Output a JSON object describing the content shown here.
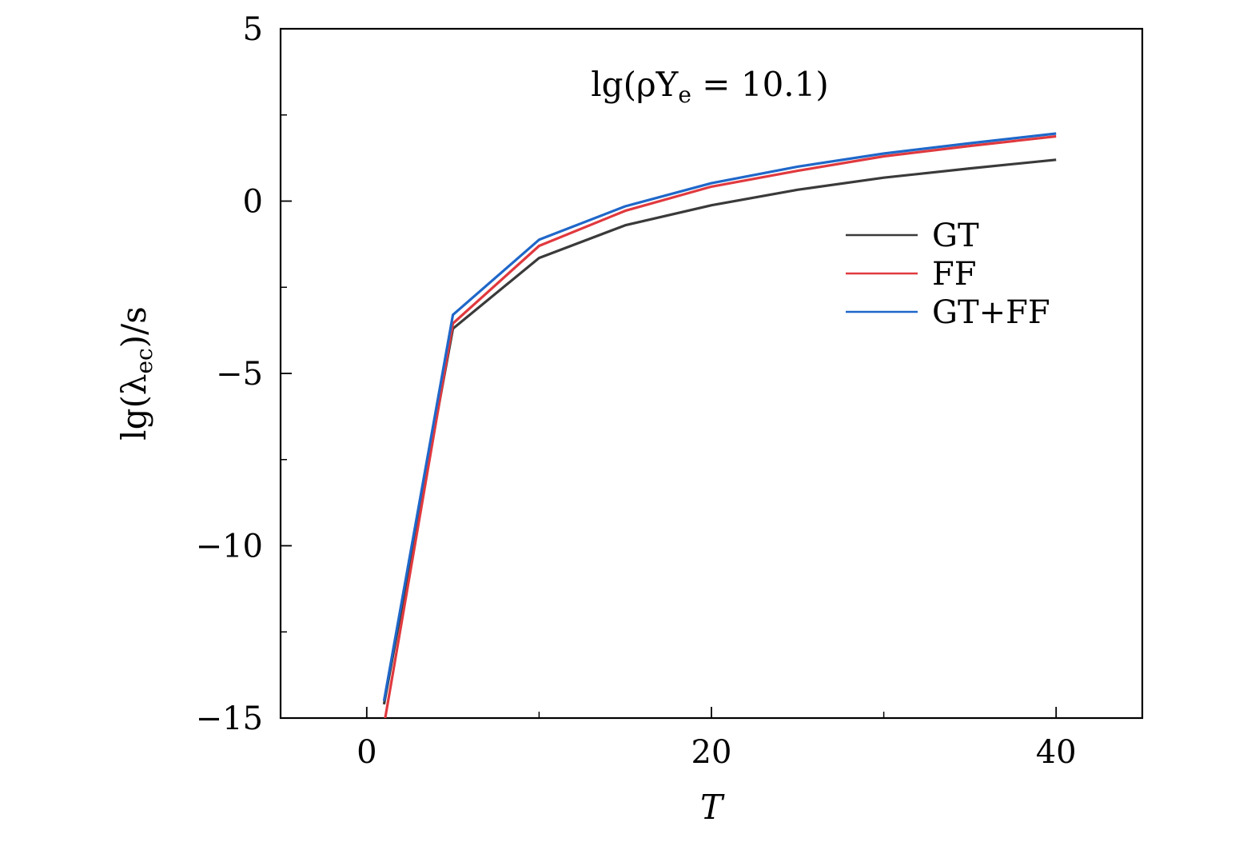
{
  "chart_data": {
    "type": "line",
    "title": "",
    "annotation": {
      "prefix": "lg(ρY",
      "sub": "e",
      "suffix": " = 10.1)"
    },
    "xlabel": "T",
    "ylabel": {
      "prefix": "lg(λ",
      "sub": "ec",
      "suffix": ")/s"
    },
    "xlim": [
      -5,
      45
    ],
    "ylim": [
      -15,
      5
    ],
    "xticks": [
      0,
      20,
      40
    ],
    "xtick_labels": [
      "0",
      "20",
      "40"
    ],
    "xminor": [
      10,
      30
    ],
    "yticks": [
      5,
      0,
      -5,
      -10,
      -15
    ],
    "ytick_labels": [
      "5",
      "0",
      "−5",
      "−10",
      "−15"
    ],
    "yminor": [
      2.5,
      -2.5,
      -7.5,
      -12.5
    ],
    "grid": false,
    "legend_position": "right",
    "x": [
      1,
      5,
      10,
      15,
      20,
      25,
      30,
      35,
      40
    ],
    "series": [
      {
        "name": "GT",
        "color": "#3a3a3a",
        "values": [
          -14.6,
          -3.7,
          -1.65,
          -0.7,
          -0.12,
          0.33,
          0.68,
          0.95,
          1.2
        ]
      },
      {
        "name": "FF",
        "color": "#e0393e",
        "values": [
          -15.2,
          -3.55,
          -1.3,
          -0.28,
          0.42,
          0.88,
          1.3,
          1.6,
          1.88
        ]
      },
      {
        "name": "GT+FF",
        "color": "#1f67c9",
        "values": [
          -14.5,
          -3.3,
          -1.12,
          -0.15,
          0.52,
          1.0,
          1.38,
          1.68,
          1.96
        ]
      }
    ]
  }
}
